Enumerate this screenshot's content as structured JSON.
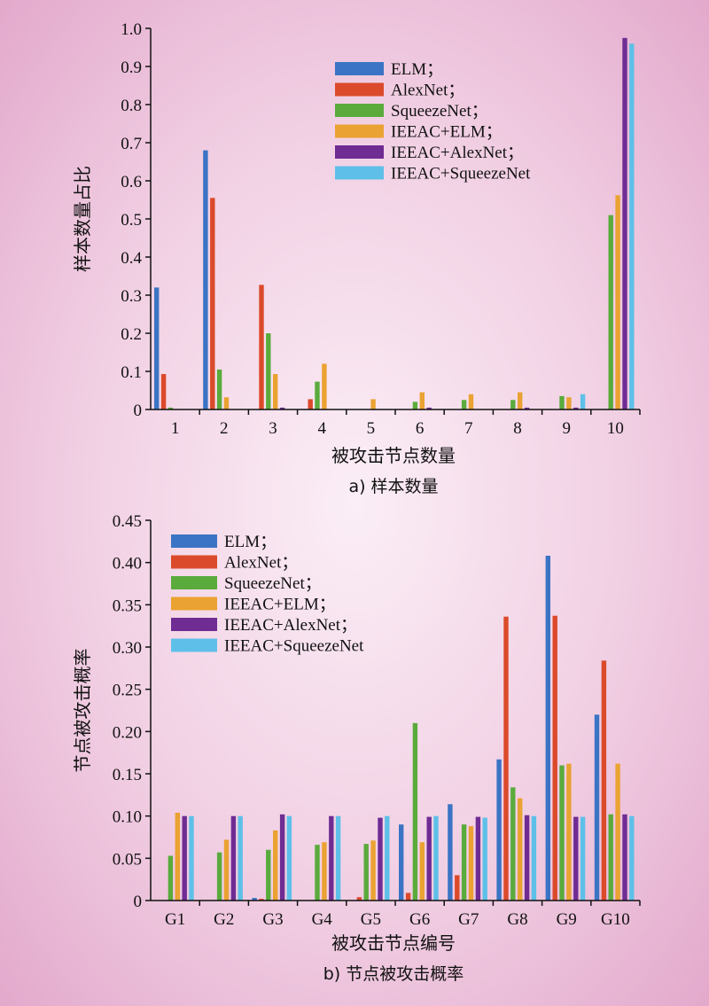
{
  "chart_data": [
    {
      "type": "bar",
      "caption": "a) 样本数量",
      "xlabel": "被攻击节点数量",
      "ylabel": "样本数量占比",
      "ylim": [
        0,
        1.0
      ],
      "yticks": [
        "0",
        "0.1",
        "0.2",
        "0.3",
        "0.4",
        "0.5",
        "0.6",
        "0.7",
        "0.8",
        "0.9",
        "1.0"
      ],
      "categories": [
        "1",
        "2",
        "3",
        "4",
        "5",
        "6",
        "7",
        "8",
        "9",
        "10"
      ],
      "legend_position": "top-right",
      "series": [
        {
          "name": "ELM；",
          "color": "#3b74c4",
          "values": [
            0.32,
            0.68,
            0,
            0,
            0,
            0,
            0,
            0,
            0,
            0
          ]
        },
        {
          "name": "AlexNet；",
          "color": "#db4a2a",
          "values": [
            0.093,
            0.555,
            0.327,
            0.027,
            0,
            0,
            0,
            0,
            0,
            0
          ]
        },
        {
          "name": "SqueezeNet；",
          "color": "#5aab3c",
          "values": [
            0.005,
            0.105,
            0.2,
            0.073,
            0,
            0.02,
            0.025,
            0.025,
            0.035,
            0.51
          ]
        },
        {
          "name": "IEEAC+ELM；",
          "color": "#eaa232",
          "values": [
            0,
            0.032,
            0.093,
            0.12,
            0.027,
            0.045,
            0.04,
            0.045,
            0.032,
            0.562
          ]
        },
        {
          "name": "IEEAC+AlexNet；",
          "color": "#6f2c93",
          "values": [
            0,
            0,
            0.005,
            0,
            0,
            0.005,
            0,
            0.005,
            0.005,
            0.975
          ]
        },
        {
          "name": "IEEAC+SqueezeNet",
          "color": "#5ec0e8",
          "values": [
            0,
            0,
            0,
            0,
            0,
            0,
            0,
            0,
            0.04,
            0.96
          ]
        }
      ]
    },
    {
      "type": "bar",
      "caption": "b) 节点被攻击概率",
      "xlabel": "被攻击节点编号",
      "ylabel": "节点被攻击概率",
      "ylim": [
        0,
        0.45
      ],
      "yticks": [
        "0",
        "0.05",
        "0.10",
        "0.15",
        "0.20",
        "0.25",
        "0.30",
        "0.35",
        "0.40",
        "0.45"
      ],
      "categories": [
        "G1",
        "G2",
        "G3",
        "G4",
        "G5",
        "G6",
        "G7",
        "G8",
        "G9",
        "G10"
      ],
      "legend_position": "top-left",
      "series": [
        {
          "name": "ELM；",
          "color": "#3b74c4",
          "values": [
            0,
            0,
            0.003,
            0,
            0,
            0.09,
            0.114,
            0.167,
            0.408,
            0.22
          ]
        },
        {
          "name": "AlexNet；",
          "color": "#db4a2a",
          "values": [
            0,
            0,
            0.002,
            0,
            0.004,
            0.009,
            0.03,
            0.336,
            0.337,
            0.284
          ]
        },
        {
          "name": "SqueezeNet；",
          "color": "#5aab3c",
          "values": [
            0.053,
            0.057,
            0.06,
            0.066,
            0.067,
            0.21,
            0.09,
            0.134,
            0.16,
            0.102
          ]
        },
        {
          "name": "IEEAC+ELM；",
          "color": "#eaa232",
          "values": [
            0.104,
            0.072,
            0.083,
            0.069,
            0.071,
            0.069,
            0.088,
            0.121,
            0.162,
            0.162
          ]
        },
        {
          "name": "IEEAC+AlexNet；",
          "color": "#6f2c93",
          "values": [
            0.1,
            0.1,
            0.102,
            0.1,
            0.098,
            0.099,
            0.099,
            0.101,
            0.099,
            0.102
          ]
        },
        {
          "name": "IEEAC+SqueezeNet",
          "color": "#5ec0e8",
          "values": [
            0.1,
            0.1,
            0.1,
            0.1,
            0.1,
            0.1,
            0.098,
            0.1,
            0.099,
            0.1
          ]
        }
      ]
    }
  ]
}
